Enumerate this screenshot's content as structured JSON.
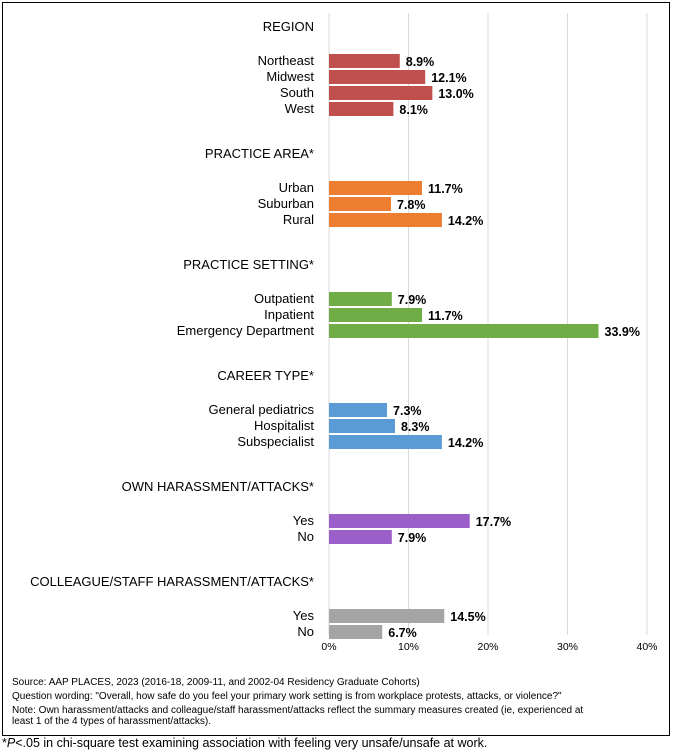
{
  "chart_data": {
    "type": "bar",
    "orientation": "horizontal",
    "xlim": [
      0,
      40
    ],
    "x_ticks": [
      "0%",
      "10%",
      "20%",
      "30%",
      "40%"
    ],
    "grid": true,
    "groups": [
      {
        "title": "REGION",
        "color": "#c0504d",
        "bars": [
          {
            "label": "Northeast",
            "value": 8.9,
            "value_label": "8.9%"
          },
          {
            "label": "Midwest",
            "value": 12.1,
            "value_label": "12.1%"
          },
          {
            "label": "South",
            "value": 13.0,
            "value_label": "13.0%"
          },
          {
            "label": "West",
            "value": 8.1,
            "value_label": "8.1%"
          }
        ]
      },
      {
        "title": "PRACTICE AREA*",
        "color": "#ed7d31",
        "bars": [
          {
            "label": "Urban",
            "value": 11.7,
            "value_label": "11.7%"
          },
          {
            "label": "Suburban",
            "value": 7.8,
            "value_label": "7.8%"
          },
          {
            "label": "Rural",
            "value": 14.2,
            "value_label": "14.2%"
          }
        ]
      },
      {
        "title": "PRACTICE SETTING*",
        "color": "#70ad47",
        "bars": [
          {
            "label": "Outpatient",
            "value": 7.9,
            "value_label": "7.9%"
          },
          {
            "label": "Inpatient",
            "value": 11.7,
            "value_label": "11.7%"
          },
          {
            "label": "Emergency Department",
            "value": 33.9,
            "value_label": "33.9%"
          }
        ]
      },
      {
        "title": "CAREER TYPE*",
        "color": "#5b9bd5",
        "bars": [
          {
            "label": "General pediatrics",
            "value": 7.3,
            "value_label": "7.3%"
          },
          {
            "label": "Hospitalist",
            "value": 8.3,
            "value_label": "8.3%"
          },
          {
            "label": "Subspecialist",
            "value": 14.2,
            "value_label": "14.2%"
          }
        ]
      },
      {
        "title": "OWN HARASSMENT/ATTACKS*",
        "color": "#9a5fc9",
        "bars": [
          {
            "label": "Yes",
            "value": 17.7,
            "value_label": "17.7%"
          },
          {
            "label": "No",
            "value": 7.9,
            "value_label": "7.9%"
          }
        ]
      },
      {
        "title": "COLLEAGUE/STAFF HARASSMENT/ATTACKS*",
        "color": "#a5a5a5",
        "bars": [
          {
            "label": "Yes",
            "value": 14.5,
            "value_label": "14.5%"
          },
          {
            "label": "No",
            "value": 6.7,
            "value_label": "6.7%"
          }
        ]
      }
    ]
  },
  "notes": {
    "source": "Source: AAP PLACES, 2023 (2016-18, 2009-11, and 2002-04 Residency Graduate Cohorts)",
    "question": "Question wording: \"Overall, how safe do you feel your primary work setting is from workplace protests, attacks, or violence?\"",
    "note_line1": "Note: Own harassment/attacks and colleague/staff harassment/attacks reflect the summary measures created (ie, experienced at",
    "note_line2": "least 1 of the 4 types of harassment/attacks).",
    "footnote_star": "*",
    "footnote_p": "P",
    "footnote_rest": "<.05 in chi-square test examining association with feeling very unsafe/unsafe at work."
  }
}
